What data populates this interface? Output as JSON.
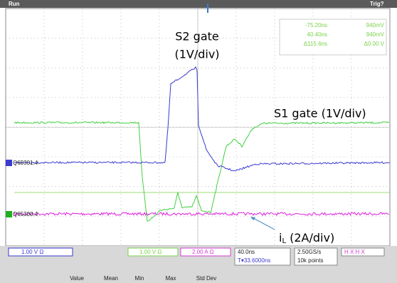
{
  "top_bar": {
    "status": "Run",
    "trigger": "Trig?"
  },
  "cursor_readout": {
    "rows": [
      [
        "-75.20ns",
        "940mV"
      ],
      [
        "40.40ns",
        "940mV"
      ],
      [
        "Δ115.6ns",
        "Δ0.00 V"
      ]
    ]
  },
  "annotations": {
    "s2_line1": "S2 gate",
    "s2_line2": "(1V/div)",
    "s1": "S1 gate (1V/div)",
    "il_main": "i",
    "il_sub": "L",
    "il_scale": " (2A/div)"
  },
  "channel_labels": {
    "ch1": "Q65301.4",
    "ch4": "Q65300.4"
  },
  "bottom_bar": {
    "ch1_scale": "1.00 V Ω",
    "ch3_scale": "1.00 V Ω",
    "ch4_scale": "2.00 A Ω",
    "timebase": "40.0ns",
    "position": "T▾33.6000ns",
    "sample_rate": "2.50GS/s",
    "record_length": "10k points",
    "cursors": "H X H X",
    "measure_headers": [
      "Value",
      "Mean",
      "Min",
      "Max",
      "Std Dev"
    ]
  }
}
